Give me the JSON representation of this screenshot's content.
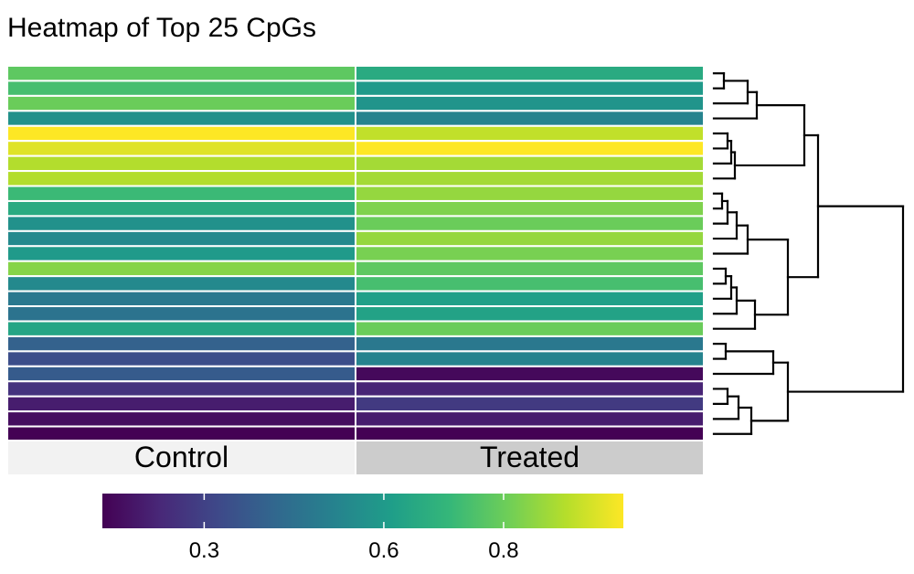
{
  "chart_data": {
    "type": "heatmap",
    "title": "Heatmap of Top 25 CpGs",
    "columns": [
      "Control",
      "Treated"
    ],
    "row_count": 25,
    "values": [
      [
        0.78,
        0.66
      ],
      [
        0.74,
        0.6
      ],
      [
        0.8,
        0.58
      ],
      [
        0.57,
        0.52
      ],
      [
        1.0,
        0.92
      ],
      [
        0.96,
        1.0
      ],
      [
        0.9,
        0.88
      ],
      [
        0.9,
        0.88
      ],
      [
        0.72,
        0.86
      ],
      [
        0.66,
        0.83
      ],
      [
        0.57,
        0.8
      ],
      [
        0.54,
        0.86
      ],
      [
        0.6,
        0.82
      ],
      [
        0.84,
        0.78
      ],
      [
        0.54,
        0.74
      ],
      [
        0.48,
        0.62
      ],
      [
        0.46,
        0.63
      ],
      [
        0.64,
        0.8
      ],
      [
        0.4,
        0.48
      ],
      [
        0.34,
        0.52
      ],
      [
        0.38,
        0.15
      ],
      [
        0.26,
        0.22
      ],
      [
        0.2,
        0.28
      ],
      [
        0.16,
        0.2
      ],
      [
        0.13,
        0.13
      ]
    ],
    "colorbar": {
      "palette": "viridis",
      "range": [
        0.13,
        1.0
      ],
      "ticks": [
        0.3,
        0.6,
        0.8
      ]
    },
    "group_colors": {
      "Control": "#f2f2f2",
      "Treated": "#cccccc"
    }
  }
}
